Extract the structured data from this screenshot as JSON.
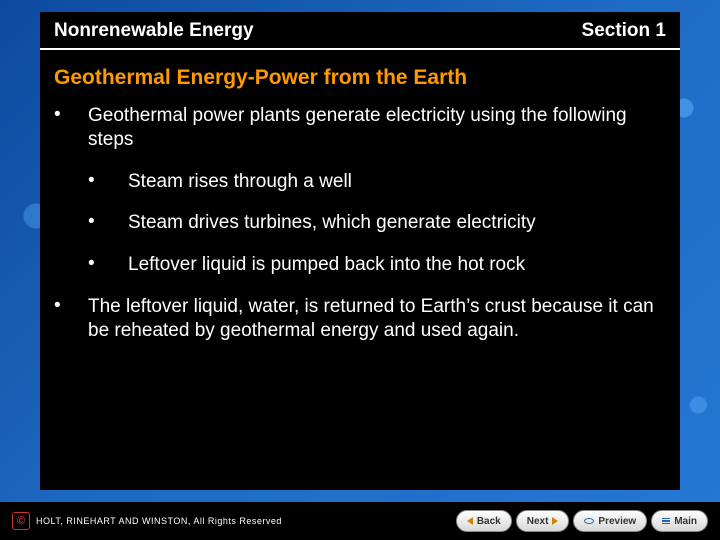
{
  "header": {
    "left": "Nonrenewable Energy",
    "right": "Section 1"
  },
  "title": "Geothermal Energy-Power from the Earth",
  "bullets": [
    {
      "text": "Geothermal power plants generate electricity using the following steps",
      "children": [
        "Steam rises through a well",
        "Steam drives turbines, which generate electricity",
        "Leftover liquid is pumped back into the hot rock"
      ]
    },
    {
      "text": "The leftover liquid, water, is returned to Earth’s crust because it can be reheated by geothermal energy and used again.",
      "children": []
    }
  ],
  "footer": {
    "copyright": "HOLT, RINEHART AND WINSTON, All Rights Reserved",
    "buttons": {
      "back": "Back",
      "next": "Next",
      "preview": "Preview",
      "main": "Main"
    }
  },
  "colors": {
    "content_bg": "#000000",
    "title_color": "#ff9900",
    "text_color": "#ffffff",
    "page_bg": "#1a5fb0"
  },
  "typography": {
    "header_fontsize": 19,
    "title_fontsize": 21,
    "body_fontsize": 19,
    "footer_fontsize": 9
  }
}
